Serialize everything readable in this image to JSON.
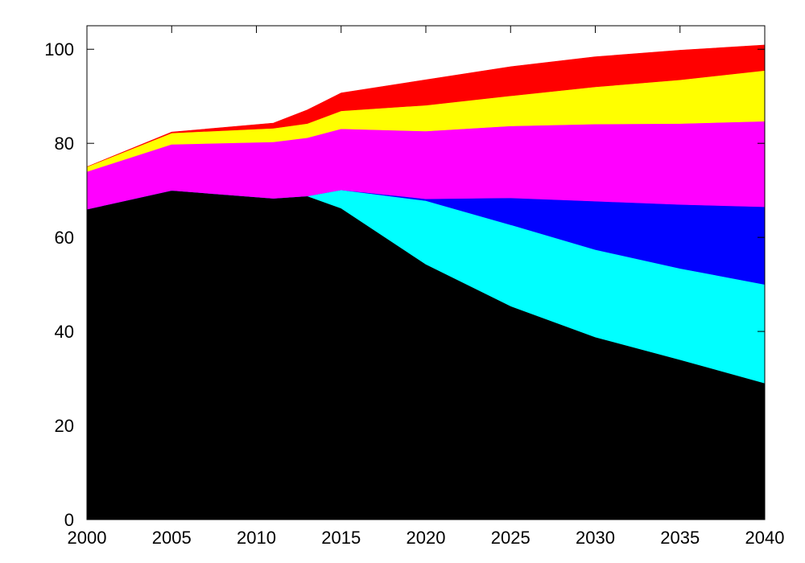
{
  "chart_data": {
    "type": "area",
    "stacked": true,
    "title": "",
    "xlabel": "",
    "ylabel": "",
    "xlim": [
      2000,
      2040
    ],
    "ylim": [
      0,
      105
    ],
    "xticks": [
      "2000",
      "2005",
      "2010",
      "2015",
      "2020",
      "2025",
      "2030",
      "2035",
      "2040"
    ],
    "yticks": [
      "0",
      "20",
      "40",
      "60",
      "80",
      "100"
    ],
    "grid": false,
    "legend": "none",
    "x": [
      2000,
      2005,
      2011,
      2013,
      2015,
      2020,
      2025,
      2030,
      2035,
      2040
    ],
    "series": [
      {
        "color": "#000000",
        "values": [
          66,
          70,
          68.3,
          68.8,
          66.2,
          54.3,
          45.4,
          38.8,
          34,
          29
        ]
      },
      {
        "color": "#00ffff",
        "values": [
          0,
          0,
          0,
          0,
          3.9,
          13.5,
          17.3,
          18.6,
          19.4,
          21
        ]
      },
      {
        "color": "#0000ff",
        "values": [
          0,
          0,
          0,
          0,
          0,
          0.4,
          5.7,
          10.3,
          13.6,
          16.5
        ]
      },
      {
        "color": "#ff00ff",
        "values": [
          8,
          9.8,
          12,
          12.4,
          13,
          14.4,
          15.3,
          16.4,
          17.2,
          18.2
        ]
      },
      {
        "color": "#ffff00",
        "values": [
          1,
          2.4,
          2.9,
          3,
          3.8,
          5.5,
          6.4,
          7.9,
          9.3,
          10.8
        ]
      },
      {
        "color": "#ff0000",
        "values": [
          0,
          0.2,
          1.1,
          2.9,
          3.8,
          5.4,
          6.2,
          6.4,
          6.3,
          5.4
        ]
      }
    ]
  }
}
